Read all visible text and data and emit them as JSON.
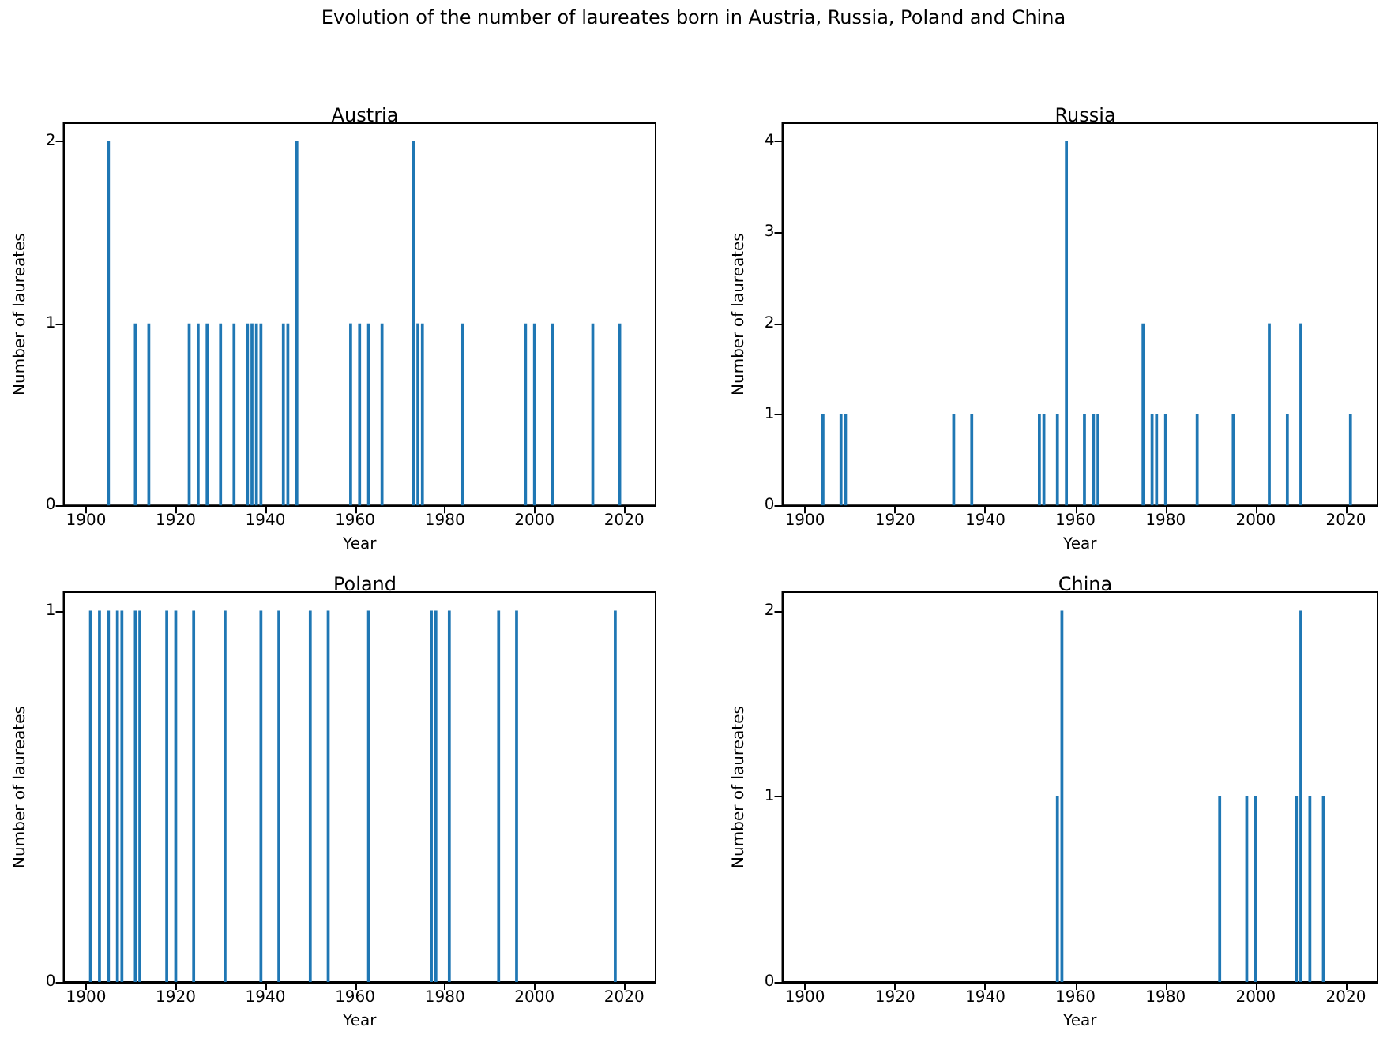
{
  "chart_data": [
    {
      "type": "bar",
      "title": "Austria",
      "annotations": [
        "Evolution of the number of laureates born in Austria, Russia, Poland and China"
      ],
      "xlabel": "Year",
      "ylabel": "Number of laureates",
      "color": "#1f77b4",
      "grid": false,
      "x": [
        1905,
        1911,
        1914,
        1923,
        1925,
        1927,
        1930,
        1933,
        1936,
        1937,
        1938,
        1939,
        1944,
        1945,
        1947,
        1959,
        1961,
        1963,
        1966,
        1973,
        1974,
        1975,
        1984,
        1998,
        2000,
        2004,
        2013,
        2019
      ],
      "values": [
        2,
        1,
        1,
        1,
        1,
        1,
        1,
        1,
        1,
        1,
        1,
        1,
        1,
        1,
        2,
        1,
        1,
        1,
        1,
        2,
        1,
        1,
        1,
        1,
        1,
        1,
        1,
        1
      ],
      "xlim": [
        1895,
        2027
      ],
      "xticks": [
        1900,
        1920,
        1940,
        1960,
        1980,
        2000,
        2020
      ],
      "ylim": [
        0,
        2.1
      ],
      "yticks": [
        0,
        1,
        2
      ]
    },
    {
      "type": "bar",
      "title": "Russia",
      "xlabel": "Year",
      "ylabel": "Number of laureates",
      "color": "#1f77b4",
      "grid": false,
      "x": [
        1904,
        1908,
        1909,
        1933,
        1937,
        1952,
        1953,
        1956,
        1958,
        1962,
        1964,
        1965,
        1975,
        1977,
        1978,
        1980,
        1987,
        1995,
        2003,
        2007,
        2010,
        2021
      ],
      "values": [
        1,
        1,
        1,
        1,
        1,
        1,
        1,
        1,
        4,
        1,
        1,
        1,
        2,
        1,
        1,
        1,
        1,
        1,
        2,
        1,
        2,
        1
      ],
      "xlim": [
        1895,
        2027
      ],
      "xticks": [
        1900,
        1920,
        1940,
        1960,
        1980,
        2000,
        2020
      ],
      "ylim": [
        0,
        4.2
      ],
      "yticks": [
        0,
        1,
        2,
        3,
        4
      ]
    },
    {
      "type": "bar",
      "title": "Poland",
      "xlabel": "Year",
      "ylabel": "Number of laureates",
      "color": "#1f77b4",
      "grid": false,
      "x": [
        1901,
        1903,
        1905,
        1907,
        1908,
        1911,
        1912,
        1918,
        1920,
        1924,
        1931,
        1939,
        1943,
        1950,
        1954,
        1963,
        1977,
        1978,
        1981,
        1992,
        1996,
        2018
      ],
      "values": [
        1,
        1,
        1,
        1,
        1,
        1,
        1,
        1,
        1,
        1,
        1,
        1,
        1,
        1,
        1,
        1,
        1,
        1,
        1,
        1,
        1,
        1
      ],
      "xlim": [
        1895,
        2027
      ],
      "xticks": [
        1900,
        1920,
        1940,
        1960,
        1980,
        2000,
        2020
      ],
      "ylim": [
        0,
        1.05
      ],
      "yticks": [
        0,
        1
      ]
    },
    {
      "type": "bar",
      "title": "China",
      "xlabel": "Year",
      "ylabel": "Number of laureates",
      "color": "#1f77b4",
      "grid": false,
      "x": [
        1956,
        1957,
        1992,
        1998,
        2000,
        2009,
        2010,
        2012,
        2015
      ],
      "values": [
        1,
        2,
        1,
        1,
        1,
        1,
        2,
        1,
        1
      ],
      "xlim": [
        1895,
        2027
      ],
      "xticks": [
        1900,
        1920,
        1940,
        1960,
        1980,
        2000,
        2020
      ],
      "ylim": [
        0,
        2.1
      ],
      "yticks": [
        0,
        1,
        2
      ]
    }
  ]
}
